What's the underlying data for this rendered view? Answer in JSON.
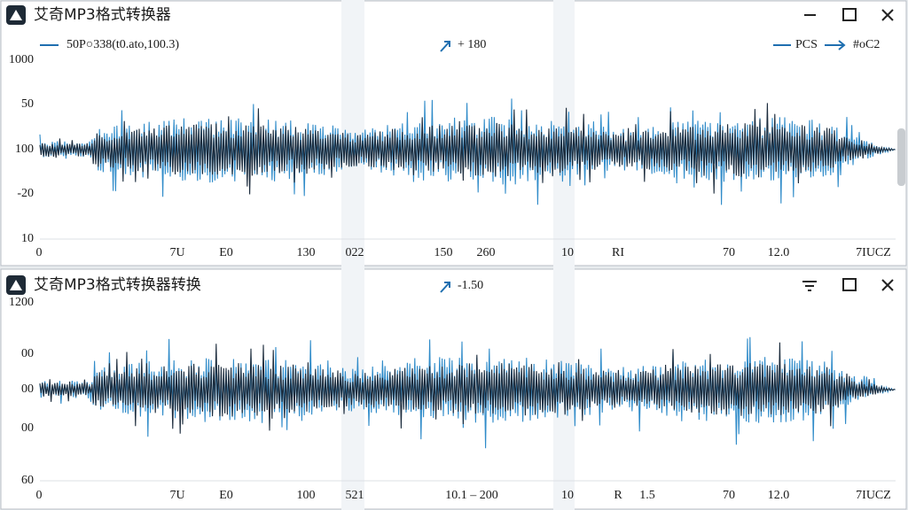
{
  "windows": [
    {
      "title": "艾奇MP3格式转换器",
      "legend": [
        "50P○338(t0.ato,100.3)",
        "+ 180",
        "PCS",
        "#oC2"
      ],
      "y_labels": [
        "1000",
        "50",
        "100",
        "-20",
        "10"
      ],
      "x_labels": [
        "0",
        "7U",
        "E0",
        "130",
        "022",
        "150",
        "260",
        "10",
        "RI",
        "70",
        "12.0",
        "7IUCZ"
      ]
    },
    {
      "title": "艾奇MP3格式转换器转换",
      "legend": [
        "-1.50"
      ],
      "y_labels": [
        "1200",
        "00",
        "00",
        "00",
        "60"
      ],
      "x_labels": [
        "0",
        "7U",
        "E0",
        "100",
        "521",
        "10.1 –  200",
        "10",
        "R",
        "1.5",
        "70",
        "12.0",
        "7IUCZ"
      ]
    }
  ]
}
